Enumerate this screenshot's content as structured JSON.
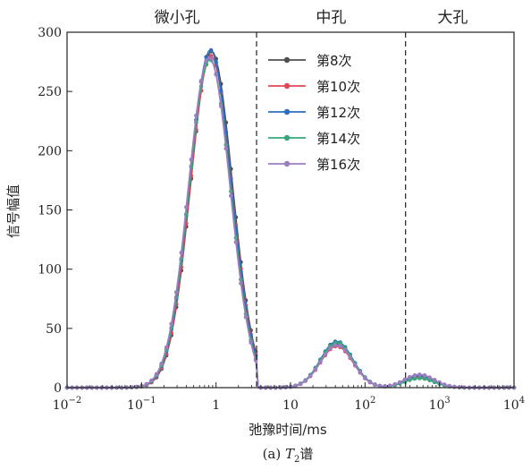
{
  "chart_data": {
    "type": "line",
    "caption": {
      "prefix": "(a) ",
      "italic": "T",
      "sub": "2",
      "suffix": "谱"
    },
    "xlabel": "弛豫时间/ms",
    "ylabel": "信号幅值",
    "x_scale": "log",
    "xlim": [
      0.01,
      10000
    ],
    "ylim": [
      0,
      300
    ],
    "x_ticks": [
      {
        "value": 0.01,
        "base": "10",
        "exp": "−2"
      },
      {
        "value": 0.1,
        "base": "10",
        "exp": "−1"
      },
      {
        "value": 1,
        "base": "1",
        "exp": ""
      },
      {
        "value": 10,
        "base": "10",
        "exp": ""
      },
      {
        "value": 100,
        "base": "10",
        "exp": "2"
      },
      {
        "value": 1000,
        "base": "10",
        "exp": "3"
      },
      {
        "value": 10000,
        "base": "10",
        "exp": "4"
      }
    ],
    "y_ticks": [
      0,
      50,
      100,
      150,
      200,
      250,
      300
    ],
    "dividers": [
      3.5,
      350
    ],
    "regions": [
      {
        "label": "微小孔",
        "center": 0.3
      },
      {
        "label": "中孔",
        "center": 35
      },
      {
        "label": "大孔",
        "center": 1500
      }
    ],
    "legend_position": "top-right",
    "series": [
      {
        "name": "第8次",
        "color": "#505050",
        "peak1": 284,
        "peak2": 37,
        "peak3": 8
      },
      {
        "name": "第10次",
        "color": "#e0475a",
        "peak1": 280,
        "peak2": 35,
        "peak3": 9
      },
      {
        "name": "第12次",
        "color": "#2c6fbf",
        "peak1": 285,
        "peak2": 39,
        "peak3": 10
      },
      {
        "name": "第14次",
        "color": "#36a87a",
        "peak1": 277,
        "peak2": 38,
        "peak3": 8
      },
      {
        "name": "第16次",
        "color": "#9a7fc0",
        "peak1": 279,
        "peak2": 36,
        "peak3": 11
      }
    ]
  }
}
